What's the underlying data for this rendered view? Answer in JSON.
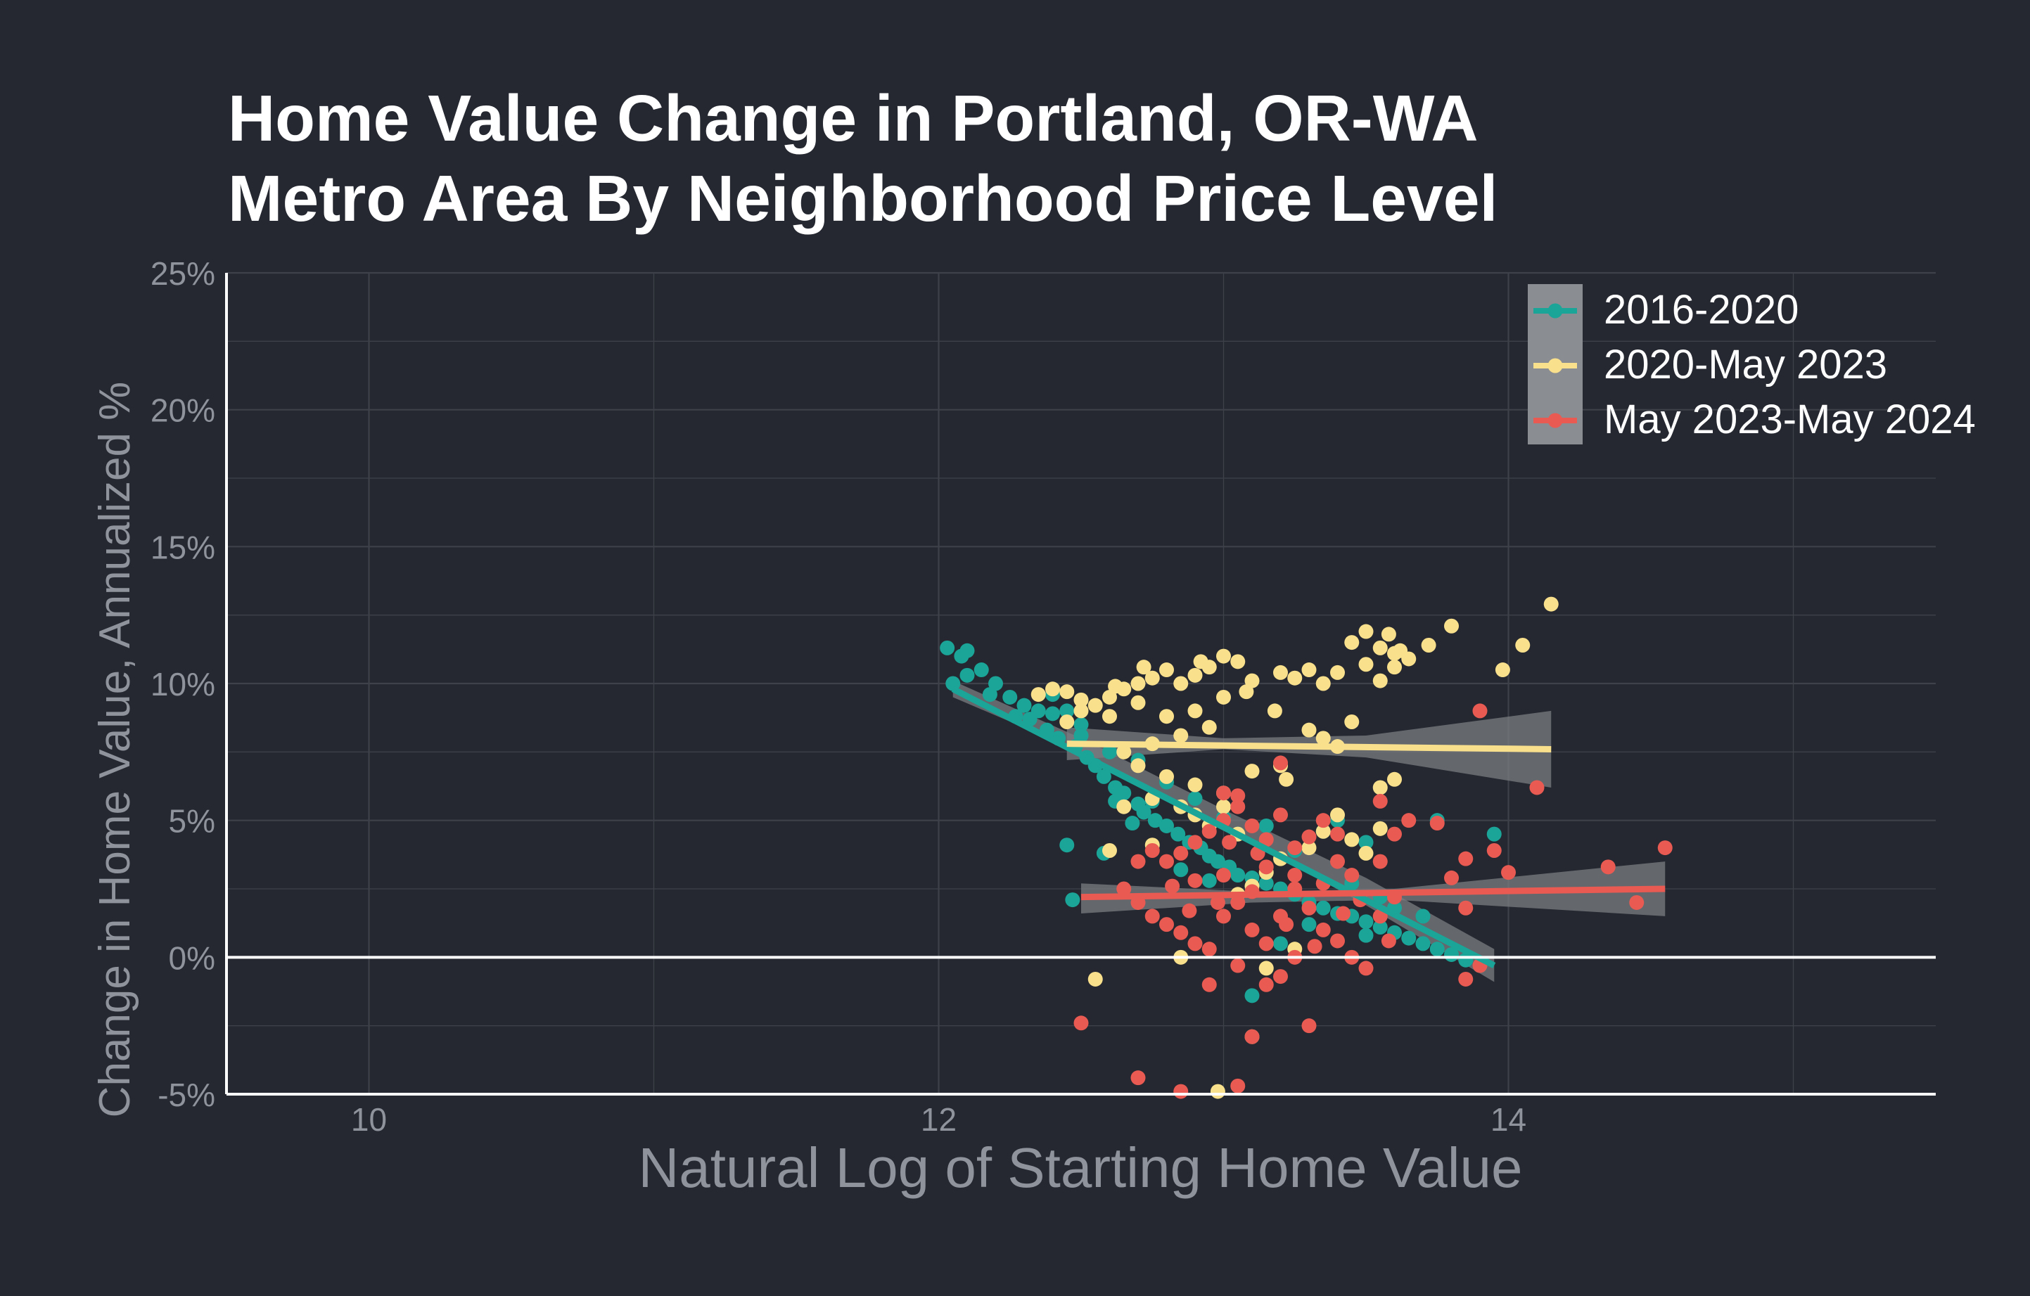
{
  "chart_data": {
    "type": "scatter",
    "title_lines": [
      "Home Value Change in Portland, OR-WA",
      "Metro Area By Neighborhood Price Level"
    ],
    "xlabel": "Natural Log of Starting Home Value",
    "ylabel": "Change in Home Value, Annualized %",
    "xlim": [
      9.5,
      15.5
    ],
    "ylim": [
      -5,
      25
    ],
    "x_ticks": [
      {
        "value": 10,
        "label": "10"
      },
      {
        "value": 12,
        "label": "12"
      },
      {
        "value": 14,
        "label": "14"
      }
    ],
    "x_minor_grid": [
      11,
      13,
      15
    ],
    "y_ticks": [
      {
        "value": -5,
        "label": "-5%"
      },
      {
        "value": 0,
        "label": "0%"
      },
      {
        "value": 5,
        "label": "5%"
      },
      {
        "value": 10,
        "label": "10%"
      },
      {
        "value": 15,
        "label": "15%"
      },
      {
        "value": 20,
        "label": "20%"
      },
      {
        "value": 25,
        "label": "25%"
      }
    ],
    "y_minor_grid": [
      -2.5,
      2.5,
      7.5,
      12.5,
      17.5,
      22.5
    ],
    "zero_line": 0,
    "grid": true,
    "legend_position": "top-right",
    "series": [
      {
        "name": "2016-2020",
        "color": "#1aa598",
        "points": [
          [
            12.03,
            11.3
          ],
          [
            12.08,
            11.0
          ],
          [
            12.1,
            11.2
          ],
          [
            12.15,
            10.5
          ],
          [
            12.2,
            10.0
          ],
          [
            12.05,
            10.0
          ],
          [
            12.1,
            10.3
          ],
          [
            12.18,
            9.6
          ],
          [
            12.25,
            9.5
          ],
          [
            12.3,
            9.2
          ],
          [
            12.35,
            9.0
          ],
          [
            12.4,
            9.6
          ],
          [
            12.45,
            9.0
          ],
          [
            12.5,
            8.5
          ],
          [
            12.32,
            8.7
          ],
          [
            12.38,
            8.3
          ],
          [
            12.42,
            8.0
          ],
          [
            12.48,
            7.7
          ],
          [
            12.52,
            7.3
          ],
          [
            12.55,
            7.0
          ],
          [
            12.58,
            6.6
          ],
          [
            12.62,
            6.2
          ],
          [
            12.65,
            6.0
          ],
          [
            12.7,
            5.6
          ],
          [
            12.72,
            5.3
          ],
          [
            12.76,
            5.0
          ],
          [
            12.8,
            4.8
          ],
          [
            12.84,
            4.5
          ],
          [
            12.88,
            4.2
          ],
          [
            12.92,
            4.0
          ],
          [
            12.95,
            3.7
          ],
          [
            12.98,
            3.5
          ],
          [
            13.02,
            3.3
          ],
          [
            13.05,
            3.0
          ],
          [
            13.1,
            2.9
          ],
          [
            13.15,
            2.7
          ],
          [
            13.2,
            2.5
          ],
          [
            13.25,
            2.3
          ],
          [
            13.3,
            2.0
          ],
          [
            13.35,
            1.8
          ],
          [
            13.4,
            1.6
          ],
          [
            13.45,
            1.5
          ],
          [
            13.5,
            1.3
          ],
          [
            13.55,
            1.1
          ],
          [
            13.6,
            0.9
          ],
          [
            13.65,
            0.7
          ],
          [
            13.7,
            0.5
          ],
          [
            13.75,
            0.3
          ],
          [
            13.8,
            0.1
          ],
          [
            13.85,
            -0.1
          ],
          [
            13.9,
            -0.3
          ],
          [
            13.95,
            4.5
          ],
          [
            13.75,
            5.0
          ],
          [
            13.5,
            4.2
          ],
          [
            13.4,
            5.0
          ],
          [
            13.35,
            4.6
          ],
          [
            12.45,
            4.1
          ],
          [
            12.47,
            2.1
          ],
          [
            13.1,
            -1.4
          ],
          [
            13.2,
            0.5
          ],
          [
            13.3,
            1.2
          ],
          [
            12.6,
            7.5
          ],
          [
            12.7,
            7.2
          ],
          [
            12.8,
            6.4
          ],
          [
            12.9,
            5.8
          ],
          [
            13.0,
            5.1
          ],
          [
            12.85,
            3.2
          ],
          [
            12.95,
            2.8
          ],
          [
            13.05,
            4.5
          ],
          [
            13.15,
            4.8
          ],
          [
            13.25,
            3.9
          ],
          [
            13.45,
            2.7
          ],
          [
            13.55,
            2.2
          ],
          [
            13.6,
            1.8
          ],
          [
            12.4,
            8.9
          ],
          [
            12.27,
            8.8
          ],
          [
            12.5,
            8.1
          ],
          [
            12.62,
            5.7
          ],
          [
            12.68,
            4.9
          ],
          [
            12.75,
            5.7
          ],
          [
            13.5,
            0.8
          ],
          [
            13.7,
            1.5
          ],
          [
            12.58,
            3.8
          ]
        ],
        "trend": [
          [
            12.05,
            9.8
          ],
          [
            13.95,
            -0.3
          ]
        ],
        "band": [
          [
            12.05,
            10.1,
            9.5
          ],
          [
            12.5,
            8.0,
            7.5
          ],
          [
            13.0,
            5.4,
            4.8
          ],
          [
            13.5,
            2.9,
            1.9
          ],
          [
            13.95,
            0.3,
            -0.9
          ]
        ]
      },
      {
        "name": "2020-May 2023",
        "color": "#f9e08c",
        "points": [
          [
            14.15,
            12.9
          ],
          [
            14.05,
            11.4
          ],
          [
            13.98,
            10.5
          ],
          [
            13.8,
            12.1
          ],
          [
            13.72,
            11.4
          ],
          [
            13.65,
            10.9
          ],
          [
            13.58,
            11.8
          ],
          [
            13.5,
            11.9
          ],
          [
            13.55,
            11.3
          ],
          [
            13.45,
            11.5
          ],
          [
            13.6,
            11.1
          ],
          [
            13.6,
            10.6
          ],
          [
            13.55,
            10.1
          ],
          [
            13.4,
            10.4
          ],
          [
            13.35,
            10.0
          ],
          [
            13.3,
            10.5
          ],
          [
            13.25,
            10.2
          ],
          [
            13.2,
            10.4
          ],
          [
            13.1,
            10.1
          ],
          [
            13.05,
            10.8
          ],
          [
            13.0,
            11.0
          ],
          [
            12.95,
            10.6
          ],
          [
            12.9,
            10.3
          ],
          [
            12.85,
            10.0
          ],
          [
            12.8,
            10.5
          ],
          [
            12.75,
            10.2
          ],
          [
            12.7,
            10.0
          ],
          [
            12.65,
            9.8
          ],
          [
            12.6,
            9.5
          ],
          [
            12.55,
            9.2
          ],
          [
            12.5,
            9.0
          ],
          [
            12.45,
            9.7
          ],
          [
            12.4,
            9.8
          ],
          [
            12.35,
            9.6
          ],
          [
            12.45,
            8.6
          ],
          [
            12.6,
            8.8
          ],
          [
            12.7,
            9.3
          ],
          [
            12.8,
            8.8
          ],
          [
            12.9,
            9.0
          ],
          [
            13.0,
            9.5
          ],
          [
            12.95,
            8.4
          ],
          [
            12.85,
            8.1
          ],
          [
            12.75,
            7.8
          ],
          [
            12.65,
            7.5
          ],
          [
            12.7,
            7.0
          ],
          [
            12.8,
            6.6
          ],
          [
            12.9,
            6.3
          ],
          [
            13.0,
            6.0
          ],
          [
            13.1,
            6.8
          ],
          [
            13.2,
            7.0
          ],
          [
            13.3,
            8.3
          ],
          [
            13.4,
            7.7
          ],
          [
            13.45,
            8.6
          ],
          [
            13.55,
            6.2
          ],
          [
            13.6,
            6.5
          ],
          [
            13.4,
            5.2
          ],
          [
            13.35,
            4.6
          ],
          [
            13.3,
            4.0
          ],
          [
            13.2,
            3.6
          ],
          [
            13.15,
            3.1
          ],
          [
            13.1,
            2.6
          ],
          [
            13.05,
            4.5
          ],
          [
            12.95,
            4.8
          ],
          [
            12.85,
            5.5
          ],
          [
            12.75,
            5.8
          ],
          [
            12.65,
            5.5
          ],
          [
            12.75,
            4.1
          ],
          [
            13.45,
            4.3
          ],
          [
            13.5,
            3.8
          ],
          [
            13.55,
            4.7
          ],
          [
            13.05,
            2.3
          ],
          [
            13.15,
            -0.4
          ],
          [
            13.25,
            0.3
          ],
          [
            12.85,
            0.0
          ],
          [
            13.1,
            -2.9
          ],
          [
            12.98,
            -4.9
          ],
          [
            12.55,
            -0.8
          ],
          [
            12.6,
            3.9
          ],
          [
            13.0,
            5.5
          ],
          [
            12.9,
            5.2
          ],
          [
            12.5,
            9.4
          ],
          [
            12.62,
            9.9
          ],
          [
            12.72,
            10.6
          ],
          [
            12.92,
            10.8
          ],
          [
            13.08,
            9.7
          ],
          [
            13.18,
            9.0
          ],
          [
            13.5,
            10.7
          ],
          [
            13.62,
            11.2
          ],
          [
            13.22,
            6.5
          ],
          [
            13.35,
            8.0
          ]
        ],
        "trend": [
          [
            12.45,
            7.8
          ],
          [
            14.15,
            7.6
          ]
        ],
        "band": [
          [
            12.45,
            8.4,
            7.2
          ],
          [
            13.0,
            8.0,
            7.6
          ],
          [
            13.5,
            8.1,
            7.3
          ],
          [
            14.15,
            9.0,
            6.2
          ]
        ]
      },
      {
        "name": "May 2023-May 2024",
        "color": "#e85a52",
        "points": [
          [
            14.55,
            4.0
          ],
          [
            14.35,
            3.3
          ],
          [
            14.45,
            2.0
          ],
          [
            14.1,
            6.2
          ],
          [
            13.9,
            9.0
          ],
          [
            14.0,
            3.1
          ],
          [
            13.95,
            3.9
          ],
          [
            13.85,
            3.6
          ],
          [
            13.8,
            2.9
          ],
          [
            13.85,
            1.8
          ],
          [
            13.9,
            -0.3
          ],
          [
            13.85,
            -0.8
          ],
          [
            13.75,
            4.9
          ],
          [
            13.65,
            5.0
          ],
          [
            13.6,
            4.5
          ],
          [
            13.55,
            3.5
          ],
          [
            13.45,
            3.0
          ],
          [
            13.4,
            4.5
          ],
          [
            13.35,
            5.0
          ],
          [
            13.3,
            4.4
          ],
          [
            13.25,
            4.0
          ],
          [
            13.2,
            5.2
          ],
          [
            13.15,
            4.3
          ],
          [
            13.1,
            4.8
          ],
          [
            13.05,
            5.5
          ],
          [
            13.0,
            5.0
          ],
          [
            12.95,
            4.6
          ],
          [
            12.9,
            4.2
          ],
          [
            12.85,
            3.8
          ],
          [
            12.8,
            3.5
          ],
          [
            12.75,
            3.9
          ],
          [
            12.7,
            3.5
          ],
          [
            12.65,
            2.5
          ],
          [
            12.7,
            2.0
          ],
          [
            12.75,
            1.5
          ],
          [
            12.8,
            1.2
          ],
          [
            12.85,
            0.9
          ],
          [
            12.9,
            0.5
          ],
          [
            12.95,
            0.3
          ],
          [
            13.0,
            1.5
          ],
          [
            13.05,
            2.0
          ],
          [
            13.1,
            1.0
          ],
          [
            13.15,
            0.5
          ],
          [
            13.2,
            1.5
          ],
          [
            13.25,
            2.5
          ],
          [
            13.3,
            1.8
          ],
          [
            13.35,
            1.0
          ],
          [
            13.4,
            0.6
          ],
          [
            13.45,
            0.0
          ],
          [
            13.5,
            -0.4
          ],
          [
            13.55,
            1.5
          ],
          [
            13.6,
            2.2
          ],
          [
            13.25,
            0.0
          ],
          [
            13.2,
            -0.7
          ],
          [
            13.15,
            -1.0
          ],
          [
            13.05,
            -0.3
          ],
          [
            12.95,
            -1.0
          ],
          [
            13.1,
            -2.9
          ],
          [
            13.3,
            -2.5
          ],
          [
            12.7,
            -4.4
          ],
          [
            12.85,
            -4.9
          ],
          [
            13.05,
            -4.7
          ],
          [
            12.5,
            -2.4
          ],
          [
            13.0,
            6.0
          ],
          [
            13.05,
            5.9
          ],
          [
            13.2,
            7.1
          ],
          [
            13.55,
            5.7
          ],
          [
            13.4,
            3.5
          ],
          [
            13.0,
            3.0
          ],
          [
            12.9,
            2.8
          ],
          [
            13.15,
            3.3
          ],
          [
            13.25,
            3.0
          ],
          [
            13.35,
            2.7
          ],
          [
            13.1,
            2.4
          ],
          [
            12.98,
            2.0
          ],
          [
            13.02,
            4.2
          ],
          [
            13.12,
            3.8
          ],
          [
            13.22,
            1.2
          ],
          [
            13.32,
            0.4
          ],
          [
            13.42,
            1.6
          ],
          [
            12.82,
            2.6
          ],
          [
            12.88,
            1.7
          ],
          [
            13.48,
            2.1
          ],
          [
            13.58,
            0.6
          ]
        ],
        "trend": [
          [
            12.5,
            2.2
          ],
          [
            14.55,
            2.5
          ]
        ],
        "band": [
          [
            12.5,
            2.7,
            1.6
          ],
          [
            13.1,
            2.4,
            2.0
          ],
          [
            13.6,
            2.5,
            2.1
          ],
          [
            14.55,
            3.5,
            1.5
          ]
        ]
      }
    ]
  },
  "legend": {
    "bg_color": "#8a8d92"
  },
  "colors": {
    "background": "#252830",
    "grid": "#3e4149",
    "axis": "#ffffff",
    "band": "#7a7d82"
  }
}
